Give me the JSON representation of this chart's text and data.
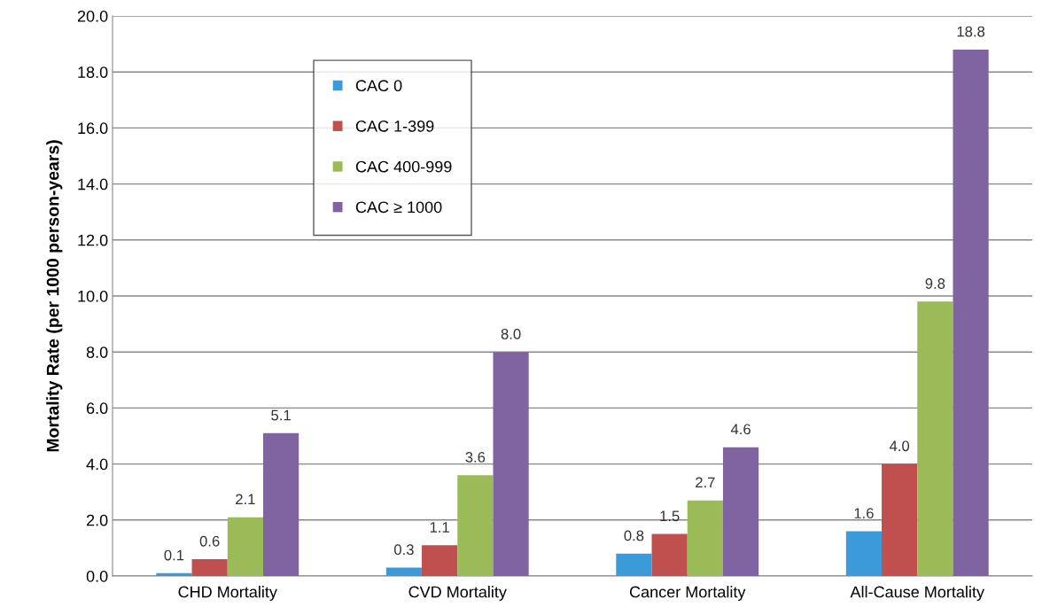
{
  "chart_data": {
    "type": "bar",
    "ylabel": "Mortality Rate (per 1000 person-years)",
    "categories": [
      "CHD Mortality",
      "CVD Mortality",
      "Cancer Mortality",
      "All-Cause Mortality"
    ],
    "series": [
      {
        "name": "CAC 0",
        "color": "#3d9ad8",
        "values": [
          0.1,
          0.3,
          0.8,
          1.6
        ],
        "value_labels": [
          "0.1",
          "0.3",
          "0.8",
          "1.6"
        ]
      },
      {
        "name": "CAC 1-399",
        "color": "#c0504d",
        "values": [
          0.6,
          1.1,
          1.5,
          4.0
        ],
        "value_labels": [
          "0.6",
          "1.1",
          "1.5",
          "4.0"
        ]
      },
      {
        "name": "CAC 400-999",
        "color": "#9bbb59",
        "values": [
          2.1,
          3.6,
          2.7,
          9.8
        ],
        "value_labels": [
          "2.1",
          "3.6",
          "2.7",
          "9.8"
        ]
      },
      {
        "name": "CAC ≥ 1000",
        "color": "#8064a2",
        "values": [
          5.1,
          8.0,
          4.6,
          18.8
        ],
        "value_labels": [
          "5.1",
          "8.0",
          "4.6",
          "18.8"
        ]
      }
    ],
    "ylim": [
      0,
      20
    ],
    "yticks": [
      {
        "value": 0,
        "label": "0.0"
      },
      {
        "value": 2,
        "label": "2.0"
      },
      {
        "value": 4,
        "label": "4.0"
      },
      {
        "value": 6,
        "label": "6.0"
      },
      {
        "value": 8,
        "label": "8.0"
      },
      {
        "value": 10,
        "label": "10.0"
      },
      {
        "value": 12,
        "label": "12.0"
      },
      {
        "value": 14,
        "label": "14.0"
      },
      {
        "value": 16,
        "label": "16.0"
      },
      {
        "value": 18,
        "label": "18.0"
      },
      {
        "value": 20,
        "label": "20.0"
      }
    ],
    "grid": "y",
    "legend": "top left"
  }
}
